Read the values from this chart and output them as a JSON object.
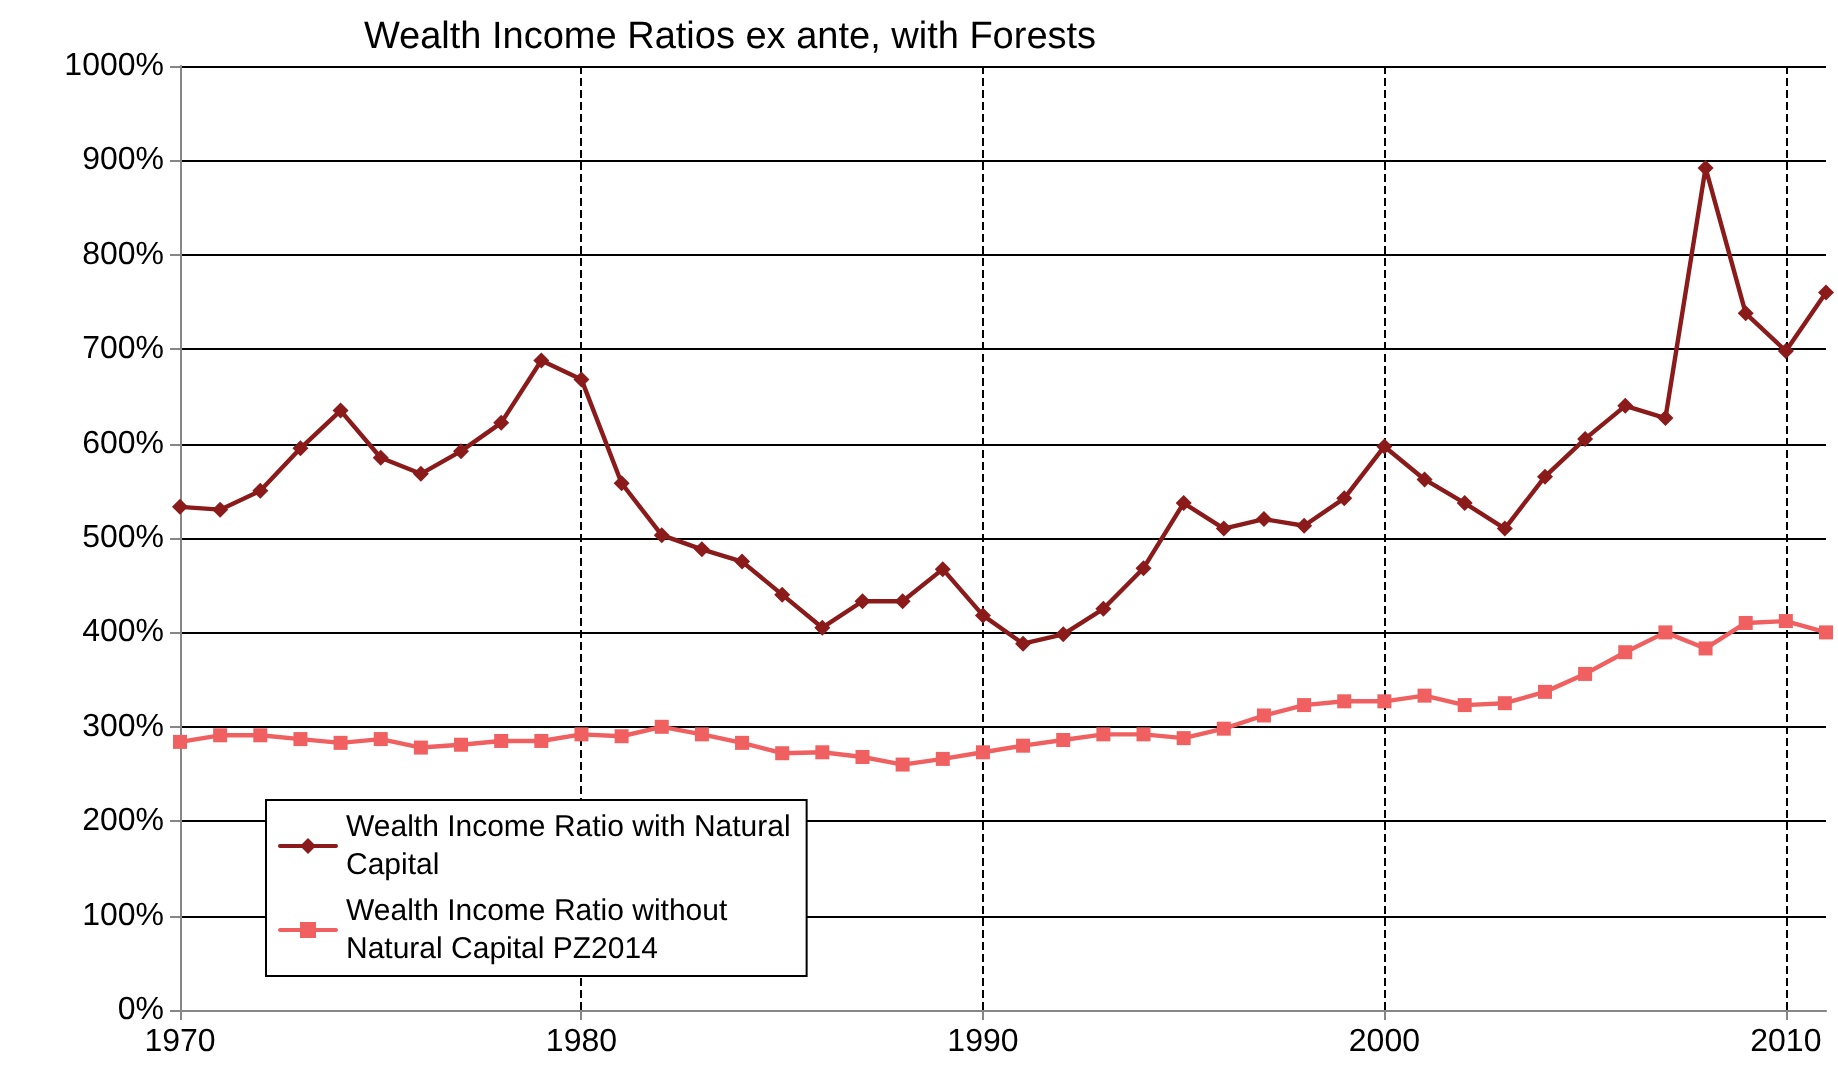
{
  "chart_data": {
    "type": "line",
    "title": "Wealth Income Ratios ex ante, with Forests",
    "x": [
      1970,
      1971,
      1972,
      1973,
      1974,
      1975,
      1976,
      1977,
      1978,
      1979,
      1980,
      1981,
      1982,
      1983,
      1984,
      1985,
      1986,
      1987,
      1988,
      1989,
      1990,
      1991,
      1992,
      1993,
      1994,
      1995,
      1996,
      1997,
      1998,
      1999,
      2000,
      2001,
      2002,
      2003,
      2004,
      2005,
      2006,
      2007,
      2008,
      2009,
      2010,
      2011
    ],
    "series": [
      {
        "name": "Wealth Income Ratio with Natural Capital",
        "color": "#8b1a1a",
        "marker": "diamond",
        "values": [
          533,
          530,
          550,
          595,
          635,
          585,
          568,
          592,
          622,
          688,
          668,
          558,
          503,
          488,
          475,
          440,
          405,
          433,
          433,
          467,
          418,
          388,
          398,
          425,
          468,
          537,
          510,
          520,
          513,
          542,
          597,
          562,
          537,
          510,
          565,
          605,
          640,
          627,
          892,
          738,
          698,
          760
        ]
      },
      {
        "name": "Wealth Income Ratio without Natural Capital PZ2014",
        "color": "#f06060",
        "marker": "square",
        "values": [
          284,
          291,
          291,
          287,
          283,
          287,
          278,
          281,
          285,
          285,
          292,
          290,
          300,
          292,
          283,
          272,
          273,
          268,
          260,
          266,
          273,
          280,
          286,
          292,
          292,
          288,
          298,
          312,
          323,
          327,
          327,
          333,
          323,
          325,
          337,
          356,
          379,
          400,
          383,
          410,
          412,
          400
        ]
      }
    ],
    "xlim": [
      1970,
      2011
    ],
    "xticks": [
      1970,
      1980,
      1990,
      2000,
      2010
    ],
    "ylim": [
      0,
      1000
    ],
    "yticks": [
      {
        "value": 0,
        "label": "0%"
      },
      {
        "value": 100,
        "label": "100%"
      },
      {
        "value": 200,
        "label": "200%"
      },
      {
        "value": 300,
        "label": "300%"
      },
      {
        "value": 400,
        "label": "400%"
      },
      {
        "value": 500,
        "label": "500%"
      },
      {
        "value": 600,
        "label": "600%"
      },
      {
        "value": 700,
        "label": "700%"
      },
      {
        "value": 800,
        "label": "800%"
      },
      {
        "value": 900,
        "label": "900%"
      },
      {
        "value": 1000,
        "label": "1000%"
      }
    ],
    "grid": true,
    "legend": "bottom left",
    "line_style": "solid"
  }
}
